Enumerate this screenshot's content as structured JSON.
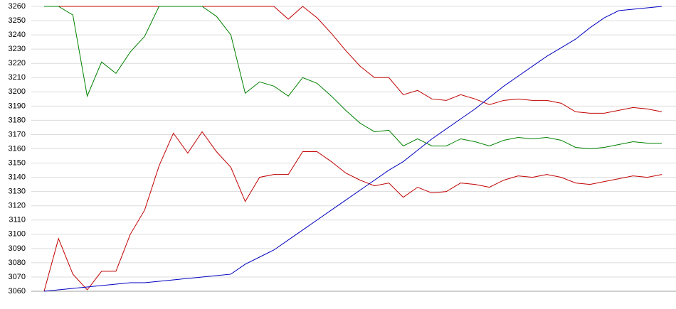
{
  "chart_data": {
    "type": "line",
    "categories": [
      null,
      null,
      null,
      null,
      null,
      null,
      null,
      null,
      null,
      null,
      null,
      null,
      null,
      null,
      null,
      null,
      null,
      null,
      null,
      null,
      null,
      null,
      null,
      null,
      null,
      null,
      null,
      null,
      null,
      null,
      null,
      null,
      null,
      null,
      null,
      null,
      null,
      null,
      null,
      null,
      null,
      null,
      null,
      null
    ],
    "series": [
      {
        "color": "#c00000",
        "values": [
          3260,
          3260,
          3260,
          3260,
          3260,
          3260,
          3260,
          3260,
          3260,
          3260,
          3260,
          3260,
          3260,
          3260,
          3260,
          3260,
          3260,
          3251,
          3260,
          3252,
          3241,
          3229,
          3218,
          3210,
          3210,
          3198,
          3201,
          3195,
          3194,
          3198,
          3195,
          3191,
          3194,
          3195,
          3194,
          3194,
          3192,
          3186,
          3185,
          3185,
          3187,
          3189,
          3188,
          3186
        ]
      },
      {
        "color": "#008000",
        "values": [
          3260,
          3260,
          3254,
          3197,
          3221,
          3213,
          3228,
          3239,
          3260,
          3260,
          3260,
          3260,
          3253,
          3240,
          3199,
          3207,
          3204,
          3197,
          3210,
          3206,
          3197,
          3187,
          3178,
          3172,
          3173,
          3162,
          3167,
          3162,
          3162,
          3167,
          3165,
          3162,
          3166,
          3168,
          3167,
          3168,
          3166,
          3161,
          3160,
          3161,
          3163,
          3165,
          3164,
          3164
        ]
      },
      {
        "color": "#c00000",
        "values": [
          3060,
          3097,
          3072,
          3061,
          3074,
          3074,
          3100,
          3117,
          3148,
          3171,
          3157,
          3172,
          3158,
          3147,
          3123,
          3140,
          3142,
          3142,
          3158,
          3158,
          3151,
          3143,
          3138,
          3134,
          3136,
          3126,
          3133,
          3129,
          3130,
          3136,
          3135,
          3133,
          3138,
          3141,
          3140,
          3142,
          3140,
          3136,
          3135,
          3137,
          3139,
          3141,
          3140,
          3142
        ]
      },
      {
        "color": "#0000c0",
        "values": [
          3060,
          3061,
          3062,
          3063,
          3064,
          3065,
          3066,
          3066,
          3067,
          3068,
          3069,
          3070,
          3071,
          3072,
          3079,
          3084,
          3089,
          3096,
          3103,
          3110,
          3117,
          3124,
          3131,
          3138,
          3145,
          3151,
          3159,
          3167,
          3174,
          3181,
          3188,
          3196,
          3204,
          3211,
          3218,
          3225,
          3231,
          3237,
          3245,
          3252,
          3257,
          3258,
          3259,
          3260
        ]
      }
    ],
    "ylim": [
      3060,
      3260
    ],
    "yticks": [
      3060,
      3070,
      3080,
      3090,
      3100,
      3110,
      3120,
      3130,
      3140,
      3150,
      3160,
      3170,
      3180,
      3190,
      3200,
      3210,
      3220,
      3230,
      3240,
      3250,
      3260
    ],
    "grid": true
  }
}
